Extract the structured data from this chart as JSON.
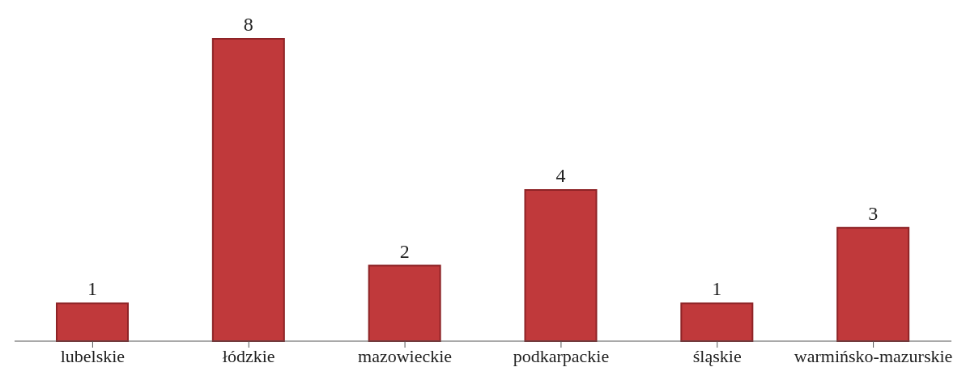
{
  "chart_data": {
    "type": "bar",
    "categories": [
      "lubelskie",
      "łódzkie",
      "mazowieckie",
      "podkarpackie",
      "śląskie",
      "warmińsko-mazurskie"
    ],
    "values": [
      1,
      8,
      2,
      4,
      1,
      3
    ],
    "color": "#c0393b",
    "data_labels": true,
    "grid": false,
    "legend": false
  }
}
